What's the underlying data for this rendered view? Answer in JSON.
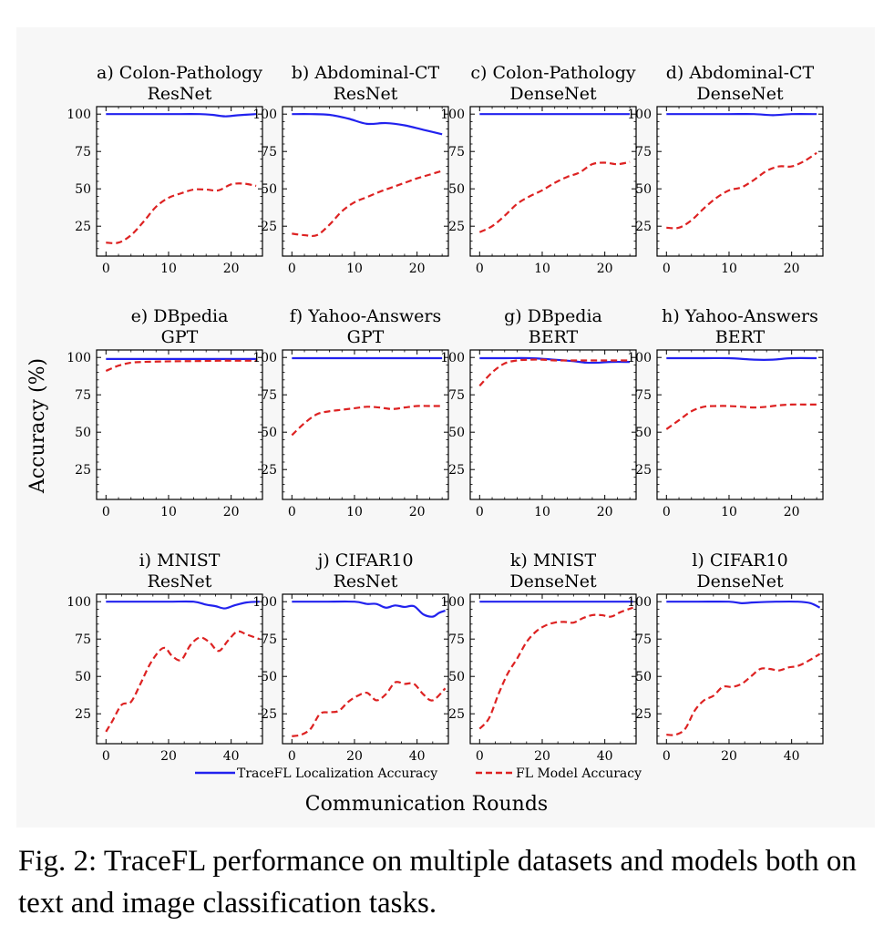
{
  "figure": {
    "caption": "Fig. 2: TraceFL performance on multiple datasets and models both on text and image classification tasks.",
    "ylabel": "Accuracy (%)",
    "xlabel": "Communication Rounds",
    "legend": [
      {
        "label": "TraceFL Localization Accuracy",
        "color": "#2222ee",
        "dash": "solid"
      },
      {
        "label": "FL Model Accuracy",
        "color": "#dd2222",
        "dash": "dashed"
      }
    ],
    "legend_placement": "bottom-center",
    "colors": {
      "traceFL": "#2222ee",
      "fl": "#dd2222",
      "background": "#f7f7f7"
    }
  },
  "chart_data": [
    {
      "type": "line",
      "title": "a) Colon-Pathology",
      "subtitle": "ResNet",
      "xlim": [
        -1.5,
        25
      ],
      "ylim": [
        5,
        105
      ],
      "xticks": [
        0,
        10,
        20
      ],
      "yticks": [
        25,
        50,
        75,
        100
      ],
      "series": [
        {
          "name": "TraceFL Localization Accuracy",
          "x": [
            0,
            5,
            10,
            15,
            17,
            19,
            21,
            24
          ],
          "y": [
            100,
            100,
            100,
            100,
            99.5,
            98.5,
            99.2,
            100
          ]
        },
        {
          "name": "FL Model Accuracy",
          "x": [
            0,
            2,
            4,
            6,
            8,
            10,
            12,
            14,
            16,
            18,
            20,
            22,
            24
          ],
          "y": [
            14,
            14,
            19,
            28,
            38,
            44,
            47,
            49.5,
            49.5,
            49,
            53,
            53.5,
            52
          ]
        }
      ]
    },
    {
      "type": "line",
      "title": "b) Abdominal-CT",
      "subtitle": "ResNet",
      "xlim": [
        -1.5,
        25
      ],
      "ylim": [
        5,
        105
      ],
      "xticks": [
        0,
        10,
        20
      ],
      "yticks": [
        25,
        50,
        75,
        100
      ],
      "series": [
        {
          "name": "TraceFL Localization Accuracy",
          "x": [
            0,
            3,
            6,
            9,
            12,
            15,
            18,
            21,
            24
          ],
          "y": [
            100,
            100,
            99.5,
            97,
            93.5,
            94,
            92.5,
            89.5,
            86.5
          ]
        },
        {
          "name": "FL Model Accuracy",
          "x": [
            0,
            2,
            4,
            6,
            8,
            10,
            12,
            14,
            16,
            18,
            20,
            22,
            24
          ],
          "y": [
            20,
            19,
            19,
            26,
            35,
            41,
            44.5,
            48,
            51,
            54,
            57,
            59.5,
            62
          ]
        }
      ]
    },
    {
      "type": "line",
      "title": "c) Colon-Pathology",
      "subtitle": "DenseNet",
      "xlim": [
        -1.5,
        25
      ],
      "ylim": [
        5,
        105
      ],
      "xticks": [
        0,
        10,
        20
      ],
      "yticks": [
        25,
        50,
        75,
        100
      ],
      "series": [
        {
          "name": "TraceFL Localization Accuracy",
          "x": [
            0,
            6,
            12,
            18,
            24
          ],
          "y": [
            100,
            100,
            100,
            100,
            100
          ]
        },
        {
          "name": "FL Model Accuracy",
          "x": [
            0,
            2,
            4,
            6,
            8,
            10,
            12,
            14,
            16,
            18,
            20,
            22,
            24
          ],
          "y": [
            21,
            25,
            32,
            40,
            45,
            49,
            54,
            58,
            61,
            66.5,
            67.5,
            66.5,
            68
          ]
        }
      ]
    },
    {
      "type": "line",
      "title": "d) Abdominal-CT",
      "subtitle": "DenseNet",
      "xlim": [
        -1.5,
        25
      ],
      "ylim": [
        5,
        105
      ],
      "xticks": [
        0,
        10,
        20
      ],
      "yticks": [
        25,
        50,
        75,
        100
      ],
      "series": [
        {
          "name": "TraceFL Localization Accuracy",
          "x": [
            0,
            5,
            10,
            14,
            17,
            20,
            24
          ],
          "y": [
            100,
            100,
            100,
            100,
            99.3,
            100,
            100
          ]
        },
        {
          "name": "FL Model Accuracy",
          "x": [
            0,
            2,
            4,
            6,
            8,
            10,
            12,
            14,
            16,
            18,
            20,
            22,
            24
          ],
          "y": [
            24,
            24,
            29,
            37,
            44,
            49,
            51,
            56,
            62,
            65,
            65,
            68.5,
            74
          ]
        }
      ]
    },
    {
      "type": "line",
      "title": "e) DBpedia",
      "subtitle": "GPT",
      "xlim": [
        -1.5,
        25
      ],
      "ylim": [
        5,
        105
      ],
      "xticks": [
        0,
        10,
        20
      ],
      "yticks": [
        25,
        50,
        75,
        100
      ],
      "series": [
        {
          "name": "TraceFL Localization Accuracy",
          "x": [
            0,
            6,
            12,
            18,
            24
          ],
          "y": [
            99,
            99,
            99,
            99,
            99
          ]
        },
        {
          "name": "FL Model Accuracy",
          "x": [
            0,
            2,
            4,
            6,
            9,
            12,
            15,
            18,
            21,
            24
          ],
          "y": [
            91,
            94.5,
            96.5,
            97,
            97.3,
            97.5,
            97.6,
            97.8,
            97.8,
            97.8
          ]
        }
      ]
    },
    {
      "type": "line",
      "title": "f) Yahoo-Answers",
      "subtitle": "GPT",
      "xlim": [
        -1.5,
        25
      ],
      "ylim": [
        5,
        105
      ],
      "xticks": [
        0,
        10,
        20
      ],
      "yticks": [
        25,
        50,
        75,
        100
      ],
      "series": [
        {
          "name": "TraceFL Localization Accuracy",
          "x": [
            0,
            6,
            12,
            18,
            24
          ],
          "y": [
            99.5,
            99.5,
            99.5,
            99.5,
            99.5
          ]
        },
        {
          "name": "FL Model Accuracy",
          "x": [
            0,
            2,
            4,
            6,
            8,
            10,
            12,
            14,
            16,
            18,
            20,
            22,
            24
          ],
          "y": [
            48,
            56,
            62,
            64,
            65,
            66,
            67,
            66.5,
            65.5,
            66.5,
            67.5,
            67.5,
            67.5
          ]
        }
      ]
    },
    {
      "type": "line",
      "title": "g) DBpedia",
      "subtitle": "BERT",
      "xlim": [
        -1.5,
        25
      ],
      "ylim": [
        5,
        105
      ],
      "xticks": [
        0,
        10,
        20
      ],
      "yticks": [
        25,
        50,
        75,
        100
      ],
      "series": [
        {
          "name": "TraceFL Localization Accuracy",
          "x": [
            0,
            4,
            8,
            12,
            15,
            17,
            19,
            21,
            24
          ],
          "y": [
            99.5,
            99.5,
            99.5,
            98.5,
            97.5,
            96.5,
            96.5,
            97,
            97
          ]
        },
        {
          "name": "FL Model Accuracy",
          "x": [
            0,
            2,
            4,
            6,
            8,
            10,
            12,
            14,
            16,
            18,
            20,
            22,
            24
          ],
          "y": [
            81,
            90,
            96,
            98,
            98.5,
            98.5,
            98,
            98,
            98,
            98,
            98,
            98,
            98
          ]
        }
      ]
    },
    {
      "type": "line",
      "title": "h) Yahoo-Answers",
      "subtitle": "BERT",
      "xlim": [
        -1.5,
        25
      ],
      "ylim": [
        5,
        105
      ],
      "xticks": [
        0,
        10,
        20
      ],
      "yticks": [
        25,
        50,
        75,
        100
      ],
      "series": [
        {
          "name": "TraceFL Localization Accuracy",
          "x": [
            0,
            6,
            10,
            14,
            17,
            20,
            24
          ],
          "y": [
            99.5,
            99.5,
            99.5,
            98.5,
            98.5,
            99.5,
            99.5
          ]
        },
        {
          "name": "FL Model Accuracy",
          "x": [
            0,
            2,
            4,
            6,
            8,
            10,
            12,
            14,
            16,
            18,
            20,
            22,
            24
          ],
          "y": [
            52,
            58,
            64,
            67,
            67.5,
            67.5,
            67,
            66.5,
            67,
            68,
            68.5,
            68.5,
            68.5
          ]
        }
      ]
    },
    {
      "type": "line",
      "title": "i) MNIST",
      "subtitle": "ResNet",
      "xlim": [
        -3,
        50
      ],
      "ylim": [
        5,
        105
      ],
      "xticks": [
        0,
        20,
        40
      ],
      "yticks": [
        25,
        50,
        75,
        100
      ],
      "series": [
        {
          "name": "TraceFL Localization Accuracy",
          "x": [
            0,
            10,
            20,
            28,
            32,
            35,
            38,
            41,
            45,
            49
          ],
          "y": [
            100,
            100,
            100,
            100,
            98,
            97,
            95.5,
            97.5,
            99.5,
            100
          ]
        },
        {
          "name": "FL Model Accuracy",
          "x": [
            0,
            2,
            5,
            8,
            11,
            14,
            17,
            19,
            21,
            24,
            27,
            30,
            33,
            36,
            39,
            42,
            45,
            49
          ],
          "y": [
            13,
            20,
            31,
            33,
            45,
            58,
            67,
            69,
            64,
            61,
            71,
            76,
            73,
            67,
            74,
            80,
            78,
            75
          ]
        }
      ]
    },
    {
      "type": "line",
      "title": "j) CIFAR10",
      "subtitle": "ResNet",
      "xlim": [
        -3,
        50
      ],
      "ylim": [
        5,
        105
      ],
      "xticks": [
        0,
        20,
        40
      ],
      "yticks": [
        25,
        50,
        75,
        100
      ],
      "series": [
        {
          "name": "TraceFL Localization Accuracy",
          "x": [
            0,
            10,
            20,
            24,
            27,
            30,
            33,
            36,
            39,
            42,
            45,
            47,
            49
          ],
          "y": [
            100,
            100,
            100,
            98.5,
            98.5,
            96,
            97.5,
            96.5,
            97,
            91.5,
            90,
            92.5,
            94
          ]
        },
        {
          "name": "FL Model Accuracy",
          "x": [
            0,
            3,
            6,
            9,
            12,
            15,
            18,
            21,
            24,
            27,
            30,
            33,
            36,
            39,
            42,
            45,
            49
          ],
          "y": [
            10,
            11,
            15,
            25,
            26,
            27,
            33,
            37,
            39,
            34,
            38,
            46,
            45,
            45,
            38,
            34,
            42
          ]
        }
      ]
    },
    {
      "type": "line",
      "title": "k) MNIST",
      "subtitle": "DenseNet",
      "xlim": [
        -3,
        50
      ],
      "ylim": [
        5,
        105
      ],
      "xticks": [
        0,
        20,
        40
      ],
      "yticks": [
        25,
        50,
        75,
        100
      ],
      "series": [
        {
          "name": "TraceFL Localization Accuracy",
          "x": [
            0,
            12,
            24,
            36,
            49
          ],
          "y": [
            100,
            100,
            100,
            100,
            100
          ]
        },
        {
          "name": "FL Model Accuracy",
          "x": [
            0,
            3,
            6,
            9,
            12,
            15,
            18,
            21,
            24,
            27,
            30,
            33,
            36,
            39,
            42,
            45,
            49
          ],
          "y": [
            15,
            22,
            38,
            52,
            62,
            73,
            80,
            84,
            86,
            86.5,
            86,
            89,
            91,
            91,
            90,
            93,
            96
          ]
        }
      ]
    },
    {
      "type": "line",
      "title": "l) CIFAR10",
      "subtitle": "DenseNet",
      "xlim": [
        -3,
        50
      ],
      "ylim": [
        5,
        105
      ],
      "xticks": [
        0,
        20,
        40
      ],
      "yticks": [
        25,
        50,
        75,
        100
      ],
      "series": [
        {
          "name": "TraceFL Localization Accuracy",
          "x": [
            0,
            10,
            20,
            24,
            28,
            35,
            42,
            46,
            49
          ],
          "y": [
            100,
            100,
            100,
            99,
            99.5,
            100,
            100,
            99,
            96
          ]
        },
        {
          "name": "FL Model Accuracy",
          "x": [
            0,
            3,
            6,
            9,
            12,
            15,
            18,
            21,
            24,
            27,
            30,
            33,
            36,
            39,
            42,
            45,
            49
          ],
          "y": [
            11,
            11,
            15,
            27,
            34,
            37,
            43,
            43,
            45,
            50,
            55,
            55,
            54,
            56,
            57,
            60,
            65
          ]
        }
      ]
    }
  ]
}
